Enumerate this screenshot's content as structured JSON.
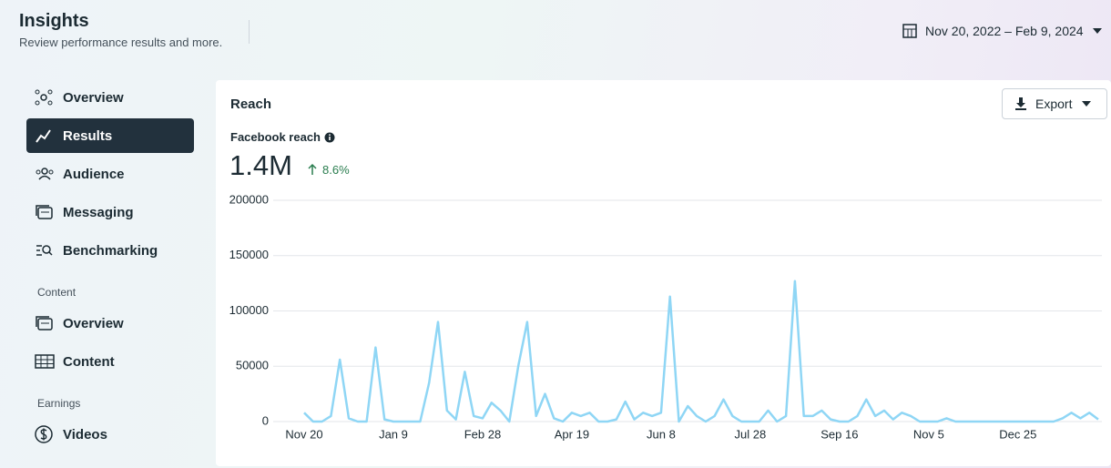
{
  "header": {
    "title": "Insights",
    "subtitle": "Review performance results and more.",
    "date_range": "Nov 20, 2022 – Feb 9, 2024"
  },
  "sidebar": {
    "items": [
      "Overview",
      "Results",
      "Audience",
      "Messaging",
      "Benchmarking"
    ],
    "sections": [
      {
        "title": "Content",
        "items": [
          "Overview",
          "Content"
        ]
      },
      {
        "title": "Earnings",
        "items": [
          "Videos"
        ]
      }
    ]
  },
  "card": {
    "title": "Reach",
    "export": "Export",
    "metric_label": "Facebook reach",
    "metric_value": "1.4M",
    "change": "8.6%"
  },
  "chart_data": {
    "type": "line",
    "color": "#8fd6f5",
    "categories": [
      "Nov 20",
      null,
      null,
      null,
      null,
      null,
      null,
      null,
      null,
      null,
      "Jan 9",
      null,
      null,
      null,
      null,
      null,
      null,
      null,
      null,
      null,
      "Feb 28",
      null,
      null,
      null,
      null,
      null,
      null,
      null,
      null,
      null,
      "Apr 19",
      null,
      null,
      null,
      null,
      null,
      null,
      null,
      null,
      null,
      "Jun 8",
      null,
      null,
      null,
      null,
      null,
      null,
      null,
      null,
      null,
      "Jul 28",
      null,
      null,
      null,
      null,
      null,
      null,
      null,
      null,
      null,
      "Sep 16",
      null,
      null,
      null,
      null,
      null,
      null,
      null,
      null,
      null,
      "Nov 5",
      null,
      null,
      null,
      null,
      null,
      null,
      null,
      null,
      null,
      "Dec 25",
      null,
      null,
      null,
      null,
      null,
      null,
      null,
      null,
      null
    ],
    "values": [
      8000,
      0,
      0,
      5000,
      56000,
      3000,
      0,
      0,
      67000,
      2000,
      0,
      0,
      0,
      0,
      35000,
      90000,
      10000,
      2000,
      45000,
      5000,
      3000,
      17000,
      10000,
      0,
      50000,
      90000,
      5000,
      25000,
      3000,
      0,
      8000,
      5000,
      8000,
      0,
      0,
      2000,
      18000,
      2000,
      8000,
      5000,
      8000,
      113000,
      0,
      14000,
      5000,
      0,
      5000,
      20000,
      5000,
      0,
      0,
      0,
      10000,
      0,
      5000,
      127000,
      5000,
      5000,
      10000,
      2000,
      0,
      0,
      5000,
      20000,
      5000,
      10000,
      2000,
      8000,
      5000,
      0,
      0,
      0,
      3000,
      0,
      0,
      0,
      0,
      0,
      0,
      0,
      0,
      0,
      0,
      0,
      0,
      3000,
      8000,
      3000,
      8000,
      2000
    ],
    "ylim": [
      0,
      200000
    ],
    "yticks": [
      0,
      50000,
      100000,
      150000,
      200000
    ],
    "grid": true
  }
}
